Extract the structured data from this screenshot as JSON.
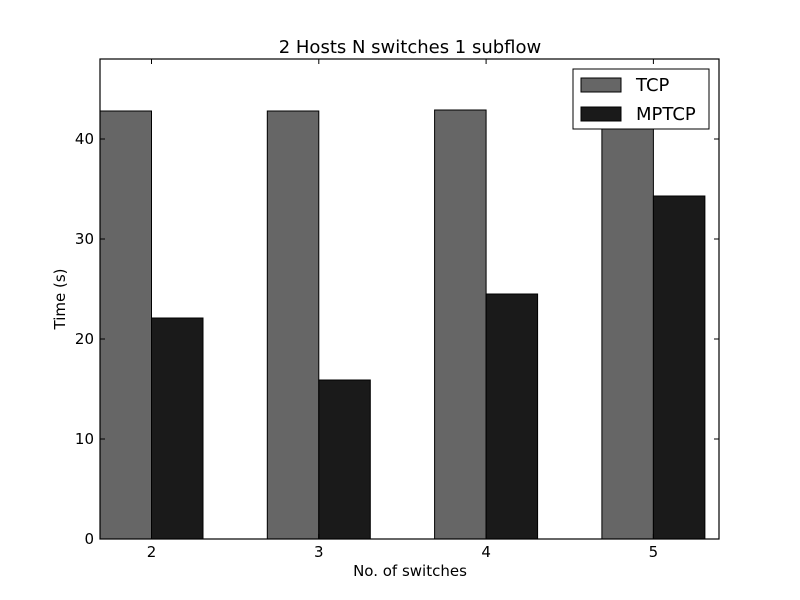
{
  "chart_data": {
    "type": "bar",
    "title": "2 Hosts N switches 1 subflow",
    "xlabel": "No. of switches",
    "ylabel": "Time (s)",
    "categories": [
      "2",
      "3",
      "4",
      "5"
    ],
    "series": [
      {
        "name": "TCP",
        "values": [
          42.8,
          42.8,
          42.9,
          42.9
        ],
        "color": "#666666"
      },
      {
        "name": "MPTCP",
        "values": [
          22.1,
          15.9,
          24.5,
          34.3
        ],
        "color": "#1a1a1a"
      }
    ],
    "ylim": [
      0,
      48
    ],
    "yticks": [
      0,
      10,
      20,
      30,
      40
    ],
    "grid": false,
    "legend_position": "top-right"
  }
}
